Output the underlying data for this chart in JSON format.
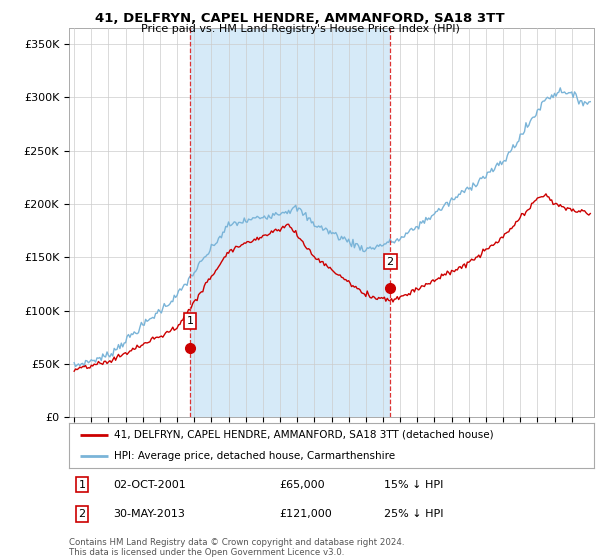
{
  "title": "41, DELFRYN, CAPEL HENDRE, AMMANFORD, SA18 3TT",
  "subtitle": "Price paid vs. HM Land Registry's House Price Index (HPI)",
  "ytick_values": [
    0,
    50000,
    100000,
    150000,
    200000,
    250000,
    300000,
    350000
  ],
  "ylim": [
    0,
    365000
  ],
  "xlim_start": 1994.7,
  "xlim_end": 2025.3,
  "hpi_color": "#7ab4d8",
  "hpi_fill_color": "#d6eaf8",
  "price_color": "#cc0000",
  "marker1_x": 2001.75,
  "marker1_y": 65000,
  "marker2_x": 2013.42,
  "marker2_y": 121000,
  "vline1_x": 2001.75,
  "vline2_x": 2013.42,
  "legend_line1": "41, DELFRYN, CAPEL HENDRE, AMMANFORD, SA18 3TT (detached house)",
  "legend_line2": "HPI: Average price, detached house, Carmarthenshire",
  "table_row1": [
    "1",
    "02-OCT-2001",
    "£65,000",
    "15% ↓ HPI"
  ],
  "table_row2": [
    "2",
    "30-MAY-2013",
    "£121,000",
    "25% ↓ HPI"
  ],
  "footer": "Contains HM Land Registry data © Crown copyright and database right 2024.\nThis data is licensed under the Open Government Licence v3.0.",
  "background_color": "#ffffff",
  "grid_color": "#cccccc"
}
